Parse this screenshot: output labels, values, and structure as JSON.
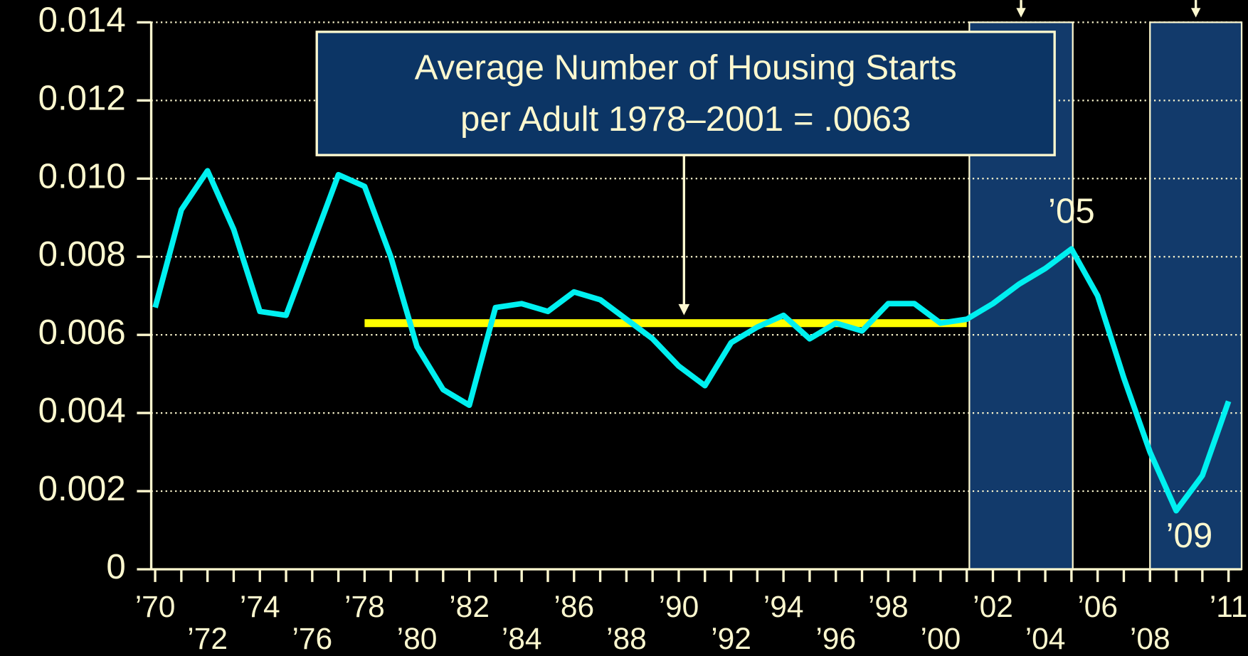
{
  "chart_data": {
    "type": "line",
    "x": [
      1970,
      1971,
      1972,
      1973,
      1974,
      1975,
      1976,
      1977,
      1978,
      1979,
      1980,
      1981,
      1982,
      1983,
      1984,
      1985,
      1986,
      1987,
      1988,
      1989,
      1990,
      1991,
      1992,
      1993,
      1994,
      1995,
      1996,
      1997,
      1998,
      1999,
      2000,
      2001,
      2002,
      2003,
      2004,
      2005,
      2006,
      2007,
      2008,
      2009,
      2010,
      2011
    ],
    "series": [
      {
        "color": "#00f0f0",
        "values": [
          0.0067,
          0.0092,
          0.0102,
          0.0087,
          0.0066,
          0.0065,
          0.0083,
          0.0101,
          0.0098,
          0.008,
          0.0057,
          0.0046,
          0.0042,
          0.0067,
          0.0068,
          0.0066,
          0.0071,
          0.0069,
          0.0064,
          0.0059,
          0.0052,
          0.0047,
          0.0058,
          0.0062,
          0.0065,
          0.0059,
          0.0063,
          0.0061,
          0.0068,
          0.0068,
          0.0063,
          0.0064,
          0.0068,
          0.0073,
          0.0077,
          0.0082,
          0.007,
          0.0049,
          0.003,
          0.0015,
          0.0024,
          0.0043
        ]
      }
    ],
    "xlim": [
      1969.85,
      2011.5
    ],
    "xticks": [
      {
        "value": 1970,
        "label": "’70"
      },
      {
        "value": 1972,
        "label": "’72"
      },
      {
        "value": 1974,
        "label": "’74"
      },
      {
        "value": 1976,
        "label": "’76"
      },
      {
        "value": 1978,
        "label": "’78"
      },
      {
        "value": 1980,
        "label": "’80"
      },
      {
        "value": 1982,
        "label": "’82"
      },
      {
        "value": 1984,
        "label": "’84"
      },
      {
        "value": 1986,
        "label": "’86"
      },
      {
        "value": 1988,
        "label": "’88"
      },
      {
        "value": 1990,
        "label": "’90"
      },
      {
        "value": 1992,
        "label": "’92"
      },
      {
        "value": 1994,
        "label": "’94"
      },
      {
        "value": 1996,
        "label": "’96"
      },
      {
        "value": 1998,
        "label": "’98"
      },
      {
        "value": 2000,
        "label": "’00"
      },
      {
        "value": 2002,
        "label": "’02"
      },
      {
        "value": 2004,
        "label": "’04"
      },
      {
        "value": 2006,
        "label": "’06"
      },
      {
        "value": 2008,
        "label": "’08"
      },
      {
        "value": 2011,
        "label": "’11"
      }
    ],
    "minor_xticks": [
      1970,
      1971,
      1972,
      1973,
      1974,
      1975,
      1976,
      1977,
      1978,
      1979,
      1980,
      1981,
      1982,
      1983,
      1984,
      1985,
      1986,
      1987,
      1988,
      1989,
      1990,
      1991,
      1992,
      1993,
      1994,
      1995,
      1996,
      1997,
      1998,
      1999,
      2000,
      2001,
      2002,
      2003,
      2004,
      2005,
      2006,
      2007,
      2008,
      2009,
      2010,
      2011
    ],
    "ylim": [
      0,
      0.014
    ],
    "yticks": [
      0,
      0.002,
      0.004,
      0.006,
      0.008,
      {
        "value": 0.01,
        "label": "0.010"
      },
      0.012,
      0.014
    ],
    "grid": true,
    "average_line": {
      "value": 0.0063,
      "from": 1978,
      "to": 2001,
      "color": "#ffff00"
    },
    "shaded_regions": [
      {
        "x0": 2001.1,
        "x1": 2005.05
      },
      {
        "x0": 2008,
        "x1": 2011.5
      }
    ],
    "shade_color": "#123a6b",
    "annotation_box": {
      "lines": [
        "Average Number of Housing Starts",
        "per Adult 1978–2001 = .0063"
      ],
      "arrow_x": 1990.2
    },
    "point_labels": [
      {
        "text": "’05",
        "x": 2005,
        "y": 0.0091
      },
      {
        "text": "’09",
        "x": 2009.5,
        "y": 0.0008
      }
    ]
  }
}
